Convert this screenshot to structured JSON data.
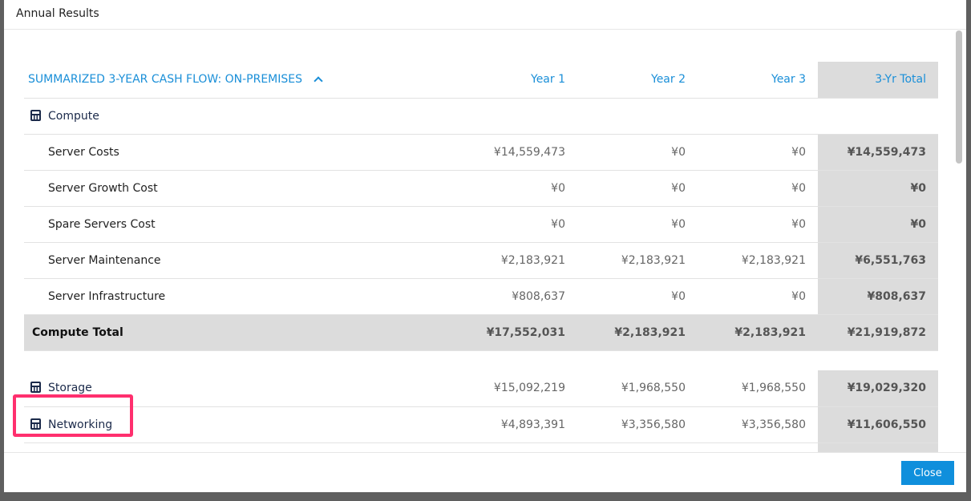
{
  "dialog": {
    "title": "Annual Results",
    "close_label": "Close"
  },
  "table": {
    "section_title": "SUMMARIZED 3-YEAR CASH FLOW: ON-PREMISES",
    "columns": [
      "Year 1",
      "Year 2",
      "Year 3",
      "3-Yr Total"
    ],
    "compute": {
      "label": "Compute",
      "rows": [
        {
          "label": "Server Costs",
          "values": [
            "¥14,559,473",
            "¥0",
            "¥0",
            "¥14,559,473"
          ]
        },
        {
          "label": "Server Growth Cost",
          "values": [
            "¥0",
            "¥0",
            "¥0",
            "¥0"
          ]
        },
        {
          "label": "Spare Servers Cost",
          "values": [
            "¥0",
            "¥0",
            "¥0",
            "¥0"
          ]
        },
        {
          "label": "Server Maintenance",
          "values": [
            "¥2,183,921",
            "¥2,183,921",
            "¥2,183,921",
            "¥6,551,763"
          ]
        },
        {
          "label": "Server Infrastructure",
          "values": [
            "¥808,637",
            "¥0",
            "¥0",
            "¥808,637"
          ]
        }
      ],
      "total": {
        "label": "Compute Total",
        "values": [
          "¥17,552,031",
          "¥2,183,921",
          "¥2,183,921",
          "¥21,919,872"
        ]
      }
    },
    "categories": [
      {
        "label": "Storage",
        "values": [
          "¥15,092,219",
          "¥1,968,550",
          "¥1,968,550",
          "¥19,029,320"
        ]
      },
      {
        "label": "Networking",
        "values": [
          "¥4,893,391",
          "¥3,356,580",
          "¥3,356,580",
          "¥11,606,550"
        ]
      }
    ]
  }
}
